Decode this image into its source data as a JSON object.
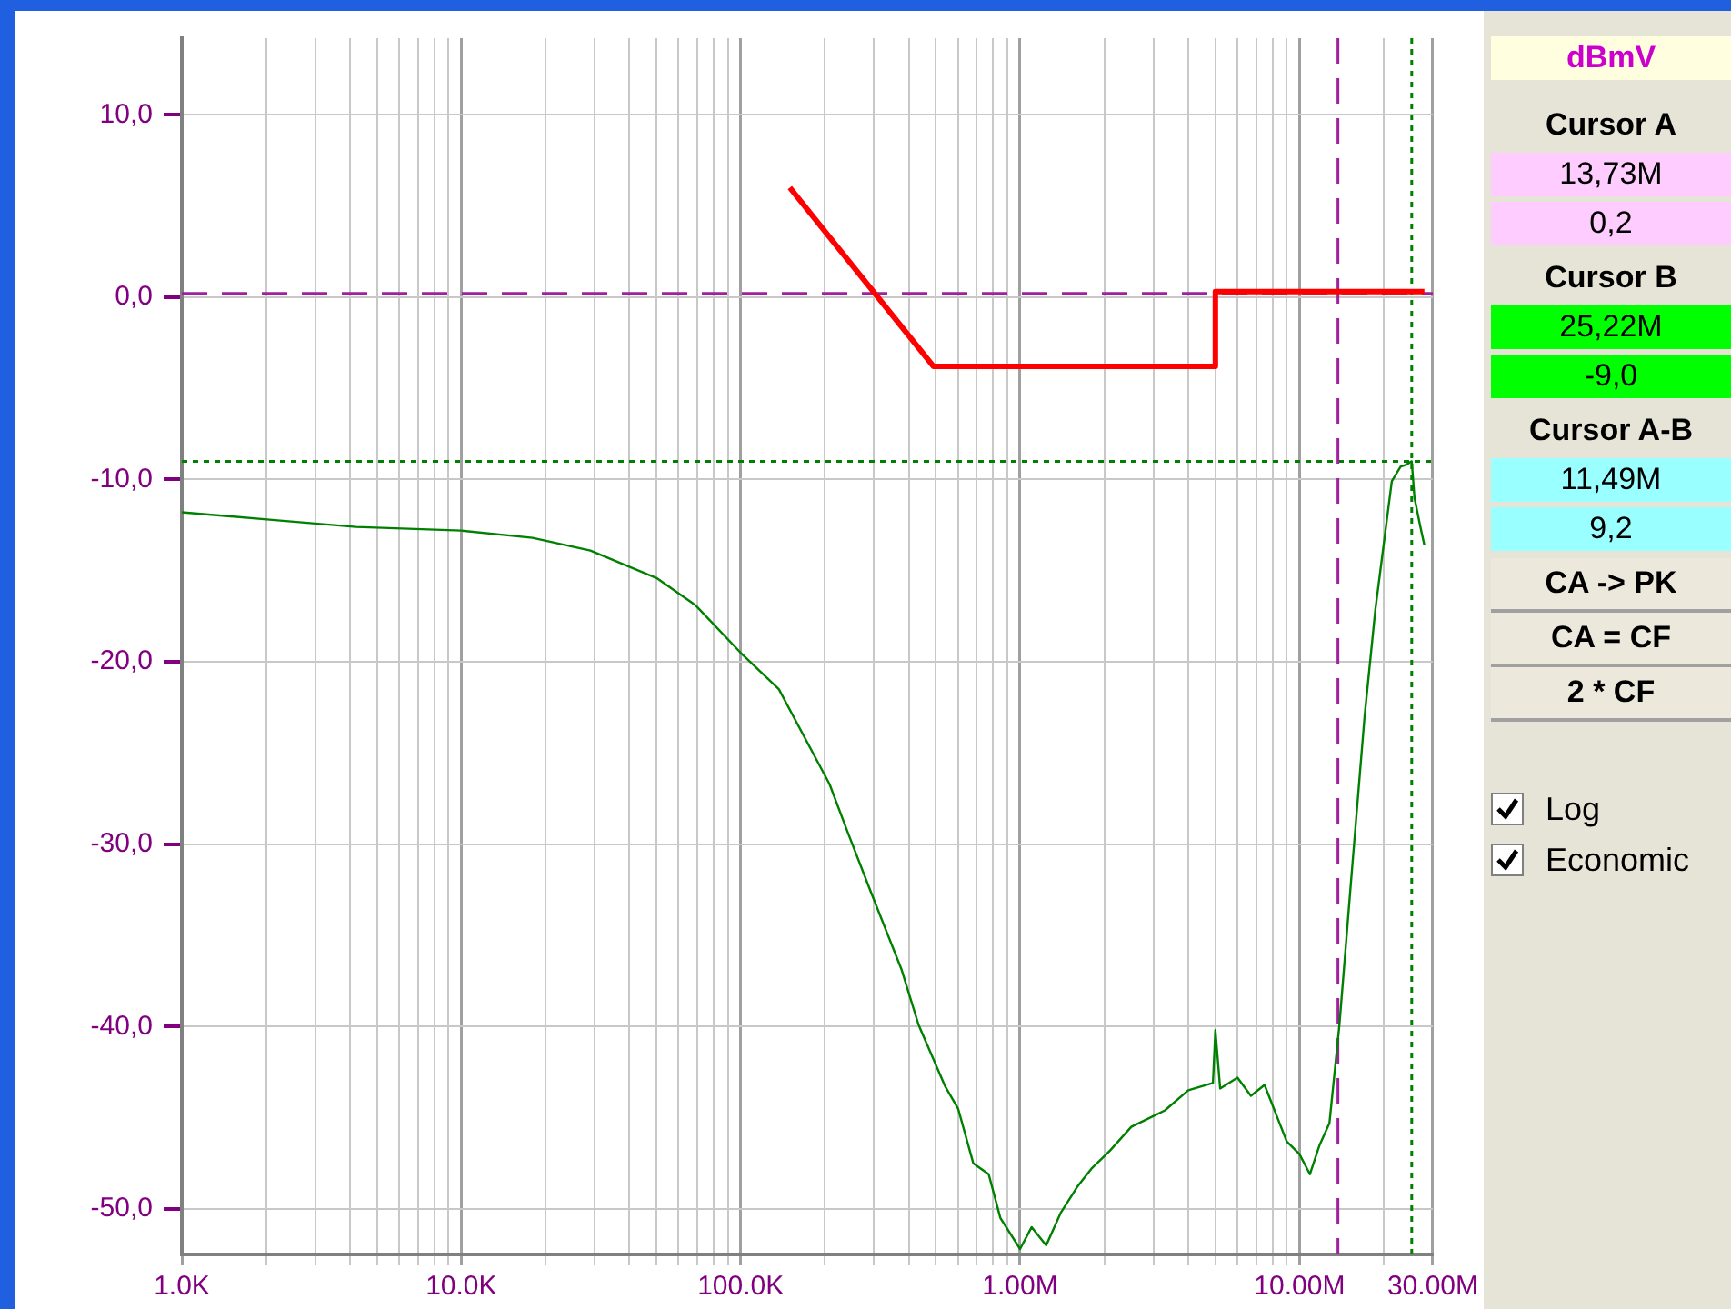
{
  "chart_data": {
    "type": "line",
    "ylabel": "dBmV",
    "xlim": [
      1000,
      30000000
    ],
    "ylim": [
      -52.5,
      14.2
    ],
    "log": "x",
    "grid": true,
    "legend": false,
    "marker": "none",
    "line_style": "solid",
    "xticks": [
      {
        "value": 1000,
        "label": "1.0K"
      },
      {
        "value": 2000,
        "label": null
      },
      {
        "value": 3000,
        "label": null
      },
      {
        "value": 4000,
        "label": null
      },
      {
        "value": 5000,
        "label": null
      },
      {
        "value": 6000,
        "label": null
      },
      {
        "value": 7000,
        "label": null
      },
      {
        "value": 8000,
        "label": null
      },
      {
        "value": 9000,
        "label": null
      },
      {
        "value": 10000,
        "label": "10.0K"
      },
      {
        "value": 20000,
        "label": null
      },
      {
        "value": 30000,
        "label": null
      },
      {
        "value": 40000,
        "label": null
      },
      {
        "value": 50000,
        "label": null
      },
      {
        "value": 60000,
        "label": null
      },
      {
        "value": 70000,
        "label": null
      },
      {
        "value": 80000,
        "label": null
      },
      {
        "value": 90000,
        "label": null
      },
      {
        "value": 100000,
        "label": "100.0K"
      },
      {
        "value": 200000,
        "label": null
      },
      {
        "value": 300000,
        "label": null
      },
      {
        "value": 400000,
        "label": null
      },
      {
        "value": 500000,
        "label": null
      },
      {
        "value": 600000,
        "label": null
      },
      {
        "value": 700000,
        "label": null
      },
      {
        "value": 800000,
        "label": null
      },
      {
        "value": 900000,
        "label": null
      },
      {
        "value": 1000000,
        "label": "1.00M"
      },
      {
        "value": 2000000,
        "label": null
      },
      {
        "value": 3000000,
        "label": null
      },
      {
        "value": 4000000,
        "label": null
      },
      {
        "value": 5000000,
        "label": null
      },
      {
        "value": 6000000,
        "label": null
      },
      {
        "value": 7000000,
        "label": null
      },
      {
        "value": 8000000,
        "label": null
      },
      {
        "value": 9000000,
        "label": null
      },
      {
        "value": 10000000,
        "label": "10.00M"
      },
      {
        "value": 20000000,
        "label": null
      },
      {
        "value": 30000000,
        "label": "30.00M"
      }
    ],
    "yticks": [
      {
        "value": -50,
        "label": "-50,0"
      },
      {
        "value": -40,
        "label": "-40,0"
      },
      {
        "value": -30,
        "label": "-30,0"
      },
      {
        "value": -20,
        "label": "-20,0"
      },
      {
        "value": -10,
        "label": "-10,0"
      },
      {
        "value": 0,
        "label": "0,0"
      },
      {
        "value": 10,
        "label": "10,0"
      }
    ],
    "series": [
      {
        "color": "#008000",
        "x": [
          1000,
          2060,
          4200,
          10000,
          18000,
          29000,
          50000,
          69000,
          100000,
          137000,
          208000,
          241000,
          292000,
          377000,
          433000,
          540000,
          600000,
          680000,
          772000,
          850000,
          1000000,
          1100000,
          1240000,
          1400000,
          1600000,
          1800000,
          2100000,
          2500000,
          3300000,
          4000000,
          4900000,
          5000000,
          5200000,
          6000000,
          6700000,
          7500000,
          9000000,
          10000000,
          10900000,
          11800000,
          12800000,
          13900000,
          15300000,
          17100000,
          18700000,
          21400000,
          23000000,
          24000000,
          25220000,
          25800000,
          27000000,
          28000000
        ],
        "values": [
          -11.8,
          -12.2,
          -12.6,
          -12.8,
          -13.2,
          -13.9,
          -15.4,
          -16.9,
          -19.5,
          -21.5,
          -26.7,
          -29.3,
          -32.6,
          -36.9,
          -39.9,
          -43.3,
          -44.5,
          -47.5,
          -48.1,
          -50.5,
          -52.2,
          -51,
          -52,
          -50.2,
          -48.8,
          -47.8,
          -46.8,
          -45.5,
          -44.6,
          -43.5,
          -43.1,
          -40.2,
          -43.4,
          -42.8,
          -43.8,
          -43.2,
          -46.3,
          -47,
          -48.1,
          -46.5,
          -45.3,
          -39.9,
          -32,
          -23,
          -17.1,
          -10.1,
          -9.3,
          -9.2,
          -9.0,
          -11,
          -12.5,
          -13.6
        ]
      },
      {
        "color": "#ff0000",
        "x": [
          150000,
          490000,
          5000000,
          5000000,
          28000000
        ],
        "values": [
          6,
          -3.8,
          -3.8,
          0.3,
          0.3
        ]
      }
    ],
    "ref_lines": [
      {
        "axis": "y",
        "value": 0.2,
        "color": "#a020a0",
        "line_style": "dashed"
      },
      {
        "axis": "y",
        "value": -9.0,
        "color": "#008000",
        "line_style": "dotted"
      },
      {
        "axis": "x",
        "value": 13730000,
        "color": "#a020a0",
        "line_style": "dashed"
      },
      {
        "axis": "x",
        "value": 25220000,
        "color": "#008000",
        "line_style": "dotted"
      }
    ],
    "annotations": [
      "Cursor A",
      "13,73M",
      "0,2",
      "Cursor B",
      "25,22M",
      "-9,0",
      "Cursor A-B",
      "11,49M",
      "9,2",
      "CA -> PK",
      "CA = CF",
      "2 * CF",
      "Log",
      "Economic"
    ]
  }
}
